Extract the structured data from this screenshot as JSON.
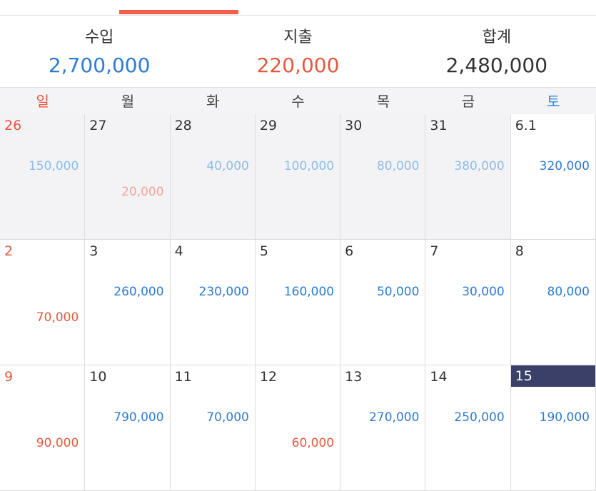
{
  "summary": {
    "income_label": "수입",
    "income_value": "2,700,000",
    "expense_label": "지출",
    "expense_value": "220,000",
    "total_label": "합계",
    "total_value": "2,480,000"
  },
  "weekdays": [
    "일",
    "월",
    "화",
    "수",
    "목",
    "금",
    "토"
  ],
  "weeks": [
    [
      {
        "day": "26",
        "income": "150,000",
        "expense": "",
        "prev": true
      },
      {
        "day": "27",
        "income": "",
        "expense": "20,000",
        "prev": true
      },
      {
        "day": "28",
        "income": "40,000",
        "expense": "",
        "prev": true
      },
      {
        "day": "29",
        "income": "100,000",
        "expense": "",
        "prev": true
      },
      {
        "day": "30",
        "income": "80,000",
        "expense": "",
        "prev": true
      },
      {
        "day": "31",
        "income": "380,000",
        "expense": "",
        "prev": true
      },
      {
        "day": "6.1",
        "income": "320,000",
        "expense": ""
      }
    ],
    [
      {
        "day": "2",
        "income": "",
        "expense": "70,000"
      },
      {
        "day": "3",
        "income": "260,000",
        "expense": ""
      },
      {
        "day": "4",
        "income": "230,000",
        "expense": ""
      },
      {
        "day": "5",
        "income": "160,000",
        "expense": ""
      },
      {
        "day": "6",
        "income": "50,000",
        "expense": ""
      },
      {
        "day": "7",
        "income": "30,000",
        "expense": ""
      },
      {
        "day": "8",
        "income": "80,000",
        "expense": ""
      }
    ],
    [
      {
        "day": "9",
        "income": "",
        "expense": "90,000"
      },
      {
        "day": "10",
        "income": "790,000",
        "expense": ""
      },
      {
        "day": "11",
        "income": "70,000",
        "expense": ""
      },
      {
        "day": "12",
        "income": "",
        "expense": "60,000"
      },
      {
        "day": "13",
        "income": "270,000",
        "expense": ""
      },
      {
        "day": "14",
        "income": "250,000",
        "expense": ""
      },
      {
        "day": "15",
        "income": "190,000",
        "expense": "",
        "today": true
      }
    ]
  ]
}
